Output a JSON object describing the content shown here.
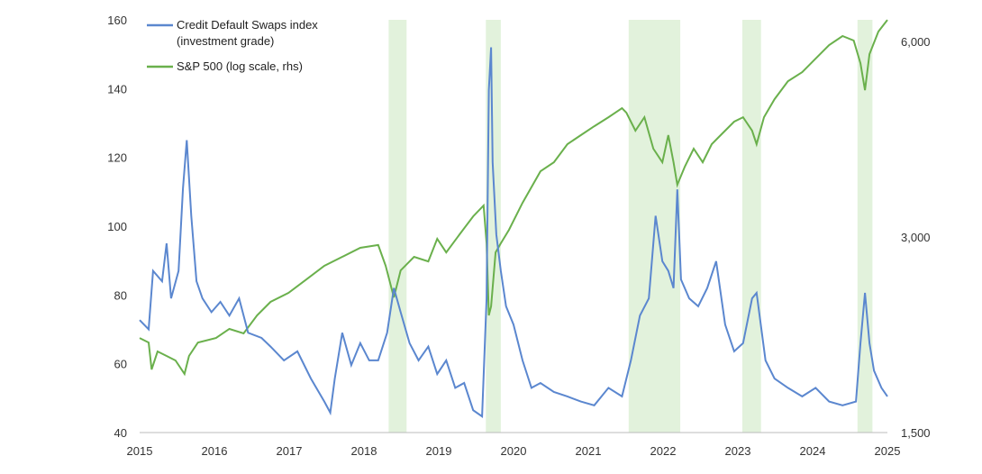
{
  "chart_data": {
    "type": "line",
    "title": "",
    "xlabel": "",
    "ylabel": "",
    "xlim": [
      2015,
      2025
    ],
    "ylim_left": [
      40,
      160
    ],
    "ylim_right_log": [
      1500,
      6480
    ],
    "x_ticks": [
      "2015",
      "2016",
      "2017",
      "2018",
      "2019",
      "2020",
      "2021",
      "2022",
      "2023",
      "2024",
      "2025"
    ],
    "left_ticks": [
      "40",
      "60",
      "80",
      "100",
      "120",
      "140",
      "160"
    ],
    "right_ticks": [
      "1,500",
      "3,000",
      "6,000"
    ],
    "right_tick_values": [
      1500,
      3000,
      6000
    ],
    "legend_position": "top-left",
    "shaded_periods": [
      [
        2018.33,
        2018.57
      ],
      [
        2019.63,
        2019.83
      ],
      [
        2021.54,
        2022.23
      ],
      [
        2023.06,
        2023.31
      ],
      [
        2024.6,
        2024.8
      ]
    ],
    "colors": {
      "cds": "#5b87cf",
      "spx": "#6ab04c",
      "shade": "#e2f2dc"
    },
    "series": [
      {
        "name": "Credit Default Swaps index",
        "name_line2": "(investment grade)",
        "axis": "left",
        "x": [
          2015.0,
          2015.12,
          2015.18,
          2015.3,
          2015.36,
          2015.42,
          2015.52,
          2015.58,
          2015.63,
          2015.69,
          2015.76,
          2015.84,
          2015.96,
          2016.08,
          2016.2,
          2016.33,
          2016.45,
          2016.63,
          2016.75,
          2016.93,
          2017.11,
          2017.29,
          2017.47,
          2017.55,
          2017.61,
          2017.71,
          2017.83,
          2017.95,
          2018.07,
          2018.19,
          2018.31,
          2018.4,
          2018.49,
          2018.61,
          2018.73,
          2018.86,
          2018.98,
          2019.1,
          2019.22,
          2019.34,
          2019.46,
          2019.58,
          2019.64,
          2019.67,
          2019.7,
          2019.72,
          2019.77,
          2019.83,
          2019.9,
          2020.0,
          2020.12,
          2020.24,
          2020.36,
          2020.54,
          2020.72,
          2020.9,
          2021.08,
          2021.27,
          2021.45,
          2021.57,
          2021.69,
          2021.81,
          2021.9,
          2021.99,
          2022.07,
          2022.14,
          2022.19,
          2022.24,
          2022.35,
          2022.47,
          2022.59,
          2022.71,
          2022.83,
          2022.95,
          2023.07,
          2023.19,
          2023.25,
          2023.37,
          2023.49,
          2023.67,
          2023.86,
          2024.04,
          2024.22,
          2024.4,
          2024.58,
          2024.64,
          2024.7,
          2024.76,
          2024.82,
          2024.92,
          2025.0
        ],
        "y": [
          72.7,
          70,
          87,
          84,
          95,
          79,
          87,
          111,
          125,
          103,
          84,
          79,
          75,
          78,
          74,
          79,
          69,
          67.5,
          65,
          61,
          63.6,
          55.7,
          49,
          45.8,
          55.7,
          69,
          59.6,
          66,
          61,
          61,
          69,
          82,
          75,
          66,
          61,
          65,
          57,
          61,
          53,
          54.4,
          46.5,
          44.7,
          79,
          139.6,
          152,
          118.6,
          97.6,
          87,
          76.7,
          71.4,
          61,
          53,
          54.4,
          51.8,
          50.5,
          49,
          47.9,
          53,
          50.5,
          61,
          74,
          79,
          103,
          89.8,
          87,
          82,
          110.7,
          84.5,
          79,
          76.7,
          82,
          89.8,
          71.4,
          63.6,
          66,
          79,
          80.6,
          61,
          55.7,
          53,
          50.5,
          53,
          49,
          47.9,
          49,
          66,
          80.6,
          66,
          58,
          53,
          50.5
        ]
      },
      {
        "name": "S&P 500 (log scale, rhs)",
        "axis": "right",
        "x": [
          2015.0,
          2015.12,
          2015.16,
          2015.24,
          2015.36,
          2015.48,
          2015.6,
          2015.66,
          2015.78,
          2016.02,
          2016.2,
          2016.39,
          2016.57,
          2016.75,
          2016.99,
          2017.23,
          2017.47,
          2017.71,
          2017.95,
          2018.19,
          2018.29,
          2018.4,
          2018.49,
          2018.67,
          2018.86,
          2018.98,
          2019.1,
          2019.28,
          2019.46,
          2019.6,
          2019.64,
          2019.67,
          2019.7,
          2019.76,
          2019.83,
          2019.94,
          2020.12,
          2020.36,
          2020.54,
          2020.72,
          2020.9,
          2021.08,
          2021.27,
          2021.45,
          2021.51,
          2021.63,
          2021.75,
          2021.87,
          2021.99,
          2022.07,
          2022.14,
          2022.19,
          2022.29,
          2022.41,
          2022.53,
          2022.65,
          2022.77,
          2022.95,
          2023.07,
          2023.19,
          2023.25,
          2023.35,
          2023.49,
          2023.67,
          2023.86,
          2024.04,
          2024.22,
          2024.4,
          2024.55,
          2024.64,
          2024.7,
          2024.76,
          2024.88,
          2025.0
        ],
        "y": [
          2097,
          2064,
          1876,
          2000,
          1968,
          1937,
          1847,
          1968,
          2064,
          2097,
          2166,
          2132,
          2272,
          2384,
          2461,
          2581,
          2709,
          2797,
          2888,
          2916,
          2709,
          2422,
          2665,
          2797,
          2752,
          2981,
          2841,
          3029,
          3228,
          3355,
          2934,
          2272,
          2346,
          2841,
          2934,
          3078,
          3387,
          3787,
          3910,
          4169,
          4305,
          4444,
          4587,
          4737,
          4662,
          4374,
          4587,
          4104,
          3910,
          4305,
          3910,
          3611,
          3849,
          4104,
          3910,
          4169,
          4305,
          4516,
          4587,
          4374,
          4169,
          4587,
          4891,
          5213,
          5382,
          5646,
          5925,
          6117,
          6020,
          5556,
          5049,
          5737,
          6216,
          6477
        ]
      }
    ]
  }
}
